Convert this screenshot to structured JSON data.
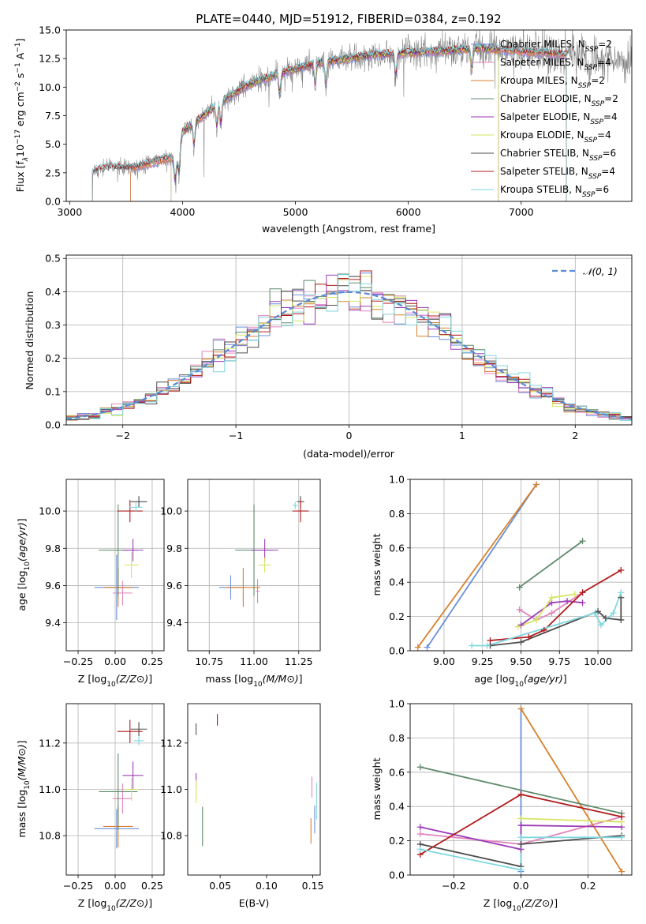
{
  "page": {
    "width": 819,
    "height": 1170
  },
  "colors": {
    "chabrier_miles": "#6a8fd9",
    "salpeter_miles": "#e283bb",
    "kroupa_miles": "#d8812d",
    "chabrier_elodie": "#5e8a6a",
    "salpeter_elodie": "#9b3bb6",
    "kroupa_elodie": "#d6e561",
    "chabrier_stelib": "#4d4d4d",
    "salpeter_stelib": "#b01c1c",
    "kroupa_stelib": "#7fd7df",
    "observed": "#808080",
    "normal": "#5b8ad6",
    "grid": "#b0b0b0"
  },
  "chart_data": [
    {
      "id": "spectrum",
      "type": "line",
      "title": "PLATE=0440, MJD=51912, FIBERID=0384, z=0.192",
      "xlabel": "wavelength [Angstrom, rest frame]",
      "ylabel": "Flux [f",
      "ylabel_parts": [
        "Flux [f",
        "λ",
        "10",
        "−17",
        " erg cm",
        "−2",
        " s",
        "−1",
        " A",
        "−1",
        "]"
      ],
      "xlim": [
        2970,
        7980
      ],
      "ylim": [
        0,
        15
      ],
      "xticks": [
        3000,
        4000,
        5000,
        6000,
        7000
      ],
      "yticks": [
        0.0,
        2.5,
        5.0,
        7.5,
        10.0,
        12.5,
        15.0
      ],
      "ytick_labels": [
        "0.0",
        "2.5",
        "5.0",
        "7.5",
        "10.0",
        "12.5",
        "15.0"
      ],
      "grid": false,
      "legend_position": "right",
      "continuum": {
        "x": [
          3200,
          3350,
          3500,
          3600,
          3800,
          3900,
          3950,
          4000,
          4200,
          4400,
          4600,
          4800,
          5000,
          5200,
          5400,
          5600,
          5800,
          6000,
          6200,
          6400,
          6600,
          6800,
          7000,
          7200,
          7400,
          7600,
          7800,
          7980
        ],
        "y": [
          2.6,
          3.0,
          2.9,
          3.0,
          3.6,
          3.8,
          3.5,
          6.1,
          7.6,
          9.1,
          10.3,
          11.0,
          11.6,
          12.1,
          12.4,
          12.7,
          12.9,
          13.0,
          13.1,
          13.2,
          13.4,
          13.3,
          13.1,
          13.0,
          12.8,
          12.6,
          12.4,
          12.3
        ]
      },
      "series": [
        {
          "name": "Chabrier MILES, N",
          "nssp": "2",
          "key": "chabrier_miles",
          "xmin": 3540,
          "xmax": 7400
        },
        {
          "name": "Salpeter MILES, N",
          "nssp": "4",
          "key": "salpeter_miles",
          "xmin": 3540,
          "xmax": 7400
        },
        {
          "name": "Kroupa MILES, N",
          "nssp": "2",
          "key": "kroupa_miles",
          "xmin": 3540,
          "xmax": 7400
        },
        {
          "name": "Chabrier ELODIE, N",
          "nssp": "2",
          "key": "chabrier_elodie",
          "xmin": 3900,
          "xmax": 6800
        },
        {
          "name": "Salpeter ELODIE, N",
          "nssp": "4",
          "key": "salpeter_elodie",
          "xmin": 3900,
          "xmax": 6800
        },
        {
          "name": "Kroupa ELODIE, N",
          "nssp": "4",
          "key": "kroupa_elodie",
          "xmin": 3900,
          "xmax": 6800
        },
        {
          "name": "Chabrier STELIB, N",
          "nssp": "6",
          "key": "chabrier_stelib",
          "xmin": 3200,
          "xmax": 7400
        },
        {
          "name": "Salpeter STELIB, N",
          "nssp": "4",
          "key": "salpeter_stelib",
          "xmin": 3200,
          "xmax": 7400
        },
        {
          "name": "Kroupa STELIB, N",
          "nssp": "6",
          "key": "kroupa_stelib",
          "xmin": 3200,
          "xmax": 7400
        }
      ],
      "legend_sub": "SSP"
    },
    {
      "id": "residuals",
      "type": "line",
      "xlabel": "(data-model)/error",
      "ylabel": "Normed distribution",
      "xlim": [
        -2.5,
        2.5
      ],
      "ylim": [
        0,
        0.51
      ],
      "xticks": [
        -2,
        -1,
        0,
        1,
        2
      ],
      "xtick_labels": [
        "−2",
        "−1",
        "0",
        "1",
        "2"
      ],
      "yticks": [
        0.0,
        0.1,
        0.2,
        0.3,
        0.4,
        0.5
      ],
      "ytick_labels": [
        "0.0",
        "0.1",
        "0.2",
        "0.3",
        "0.4",
        "0.5"
      ],
      "grid": true,
      "legend": "𝒩(0, 1)",
      "legend_position": "top-right",
      "bin_width": 0.1
    },
    {
      "id": "age-vs-Z",
      "type": "scatter",
      "xlabel": "Z [log10(Z/Z⊙)]",
      "ylabel": "age  [log10(age/yr)]",
      "xlim": [
        -0.33,
        0.33
      ],
      "ylim": [
        9.25,
        10.17
      ],
      "xticks": [
        -0.25,
        0.0,
        0.25
      ],
      "xtick_labels": [
        "−0.25",
        "0.00",
        "0.25"
      ],
      "yticks": [
        9.4,
        9.6,
        9.8,
        10.0
      ],
      "ytick_labels": [
        "9.4",
        "9.6",
        "9.8",
        "10.0"
      ],
      "grid": true,
      "points": [
        {
          "key": "chabrier_miles",
          "x": 0.01,
          "dx": 0.3,
          "y": 9.59,
          "dy": 0.35
        },
        {
          "key": "salpeter_miles",
          "x": 0.05,
          "dx": 0.13,
          "y": 9.56,
          "dy": 0.13
        },
        {
          "key": "kroupa_miles",
          "x": 0.02,
          "dx": 0.2,
          "y": 9.59,
          "dy": 0.21
        },
        {
          "key": "chabrier_elodie",
          "x": 0.02,
          "dx": 0.26,
          "y": 9.79,
          "dy": 0.49
        },
        {
          "key": "salpeter_elodie",
          "x": 0.12,
          "dx": 0.14,
          "y": 9.79,
          "dy": 0.12
        },
        {
          "key": "kroupa_elodie",
          "x": 0.11,
          "dx": 0.1,
          "y": 9.71,
          "dy": 0.14
        },
        {
          "key": "chabrier_stelib",
          "x": 0.16,
          "dx": 0.11,
          "y": 10.05,
          "dy": 0.06
        },
        {
          "key": "salpeter_stelib",
          "x": 0.1,
          "dx": 0.17,
          "y": 10.0,
          "dy": 0.12
        },
        {
          "key": "kroupa_stelib",
          "x": 0.14,
          "dx": 0.09,
          "y": 10.02,
          "dy": 0.05
        }
      ]
    },
    {
      "id": "age-vs-mass",
      "type": "scatter",
      "xlabel": "mass [log10(M/M⊙)]",
      "xlim": [
        10.63,
        11.37
      ],
      "ylim": [
        9.25,
        10.17
      ],
      "xticks": [
        10.75,
        11.0,
        11.25
      ],
      "xtick_labels": [
        "10.75",
        "11.00",
        "11.25"
      ],
      "yticks": [
        9.4,
        9.6,
        9.8,
        10.0
      ],
      "ytick_labels": [
        "9.4",
        "9.6",
        "9.8",
        "10.0"
      ],
      "grid": true,
      "points": [
        {
          "key": "chabrier_miles",
          "x": 10.87,
          "dx": 0.13,
          "y": 9.59,
          "dy": 0.13
        },
        {
          "key": "salpeter_miles",
          "x": 11.02,
          "dx": 0.02,
          "y": 9.57,
          "dy": 0.13
        },
        {
          "key": "kroupa_miles",
          "x": 10.94,
          "dx": 0.19,
          "y": 9.59,
          "dy": 0.21
        },
        {
          "key": "chabrier_elodie",
          "x": 11.0,
          "dx": 0.21,
          "y": 9.79,
          "dy": 0.49
        },
        {
          "key": "salpeter_elodie",
          "x": 11.06,
          "dx": 0.15,
          "y": 9.79,
          "dy": 0.12
        },
        {
          "key": "kroupa_elodie",
          "x": 11.06,
          "dx": 0.07,
          "y": 9.71,
          "dy": 0.08
        },
        {
          "key": "chabrier_stelib",
          "x": 11.26,
          "dx": 0.04,
          "y": 10.05,
          "dy": 0.06
        },
        {
          "key": "salpeter_stelib",
          "x": 11.26,
          "dx": 0.09,
          "y": 10.0,
          "dy": 0.12
        },
        {
          "key": "kroupa_stelib",
          "x": 11.23,
          "dx": 0.03,
          "y": 10.03,
          "dy": 0.04
        }
      ]
    },
    {
      "id": "weight-vs-age",
      "type": "line",
      "xlabel": "age  [log10(age/yr)]",
      "ylabel": "mass weight",
      "xlim": [
        8.78,
        10.22
      ],
      "ylim": [
        0,
        1
      ],
      "xticks": [
        9.0,
        9.25,
        9.5,
        9.75,
        10.0
      ],
      "xtick_labels": [
        "9.00",
        "9.25",
        "9.50",
        "9.75",
        "10.00"
      ],
      "yticks": [
        0.0,
        0.2,
        0.4,
        0.6,
        0.8,
        1.0
      ],
      "ytick_labels": [
        "0.0",
        "0.2",
        "0.4",
        "0.6",
        "0.8",
        "1.0"
      ],
      "grid": true,
      "series": [
        {
          "key": "chabrier_miles",
          "x": [
            8.89,
            9.6
          ],
          "y": [
            0.02,
            0.97
          ]
        },
        {
          "key": "salpeter_miles",
          "x": [
            9.49,
            9.6,
            9.7,
            9.9
          ],
          "y": [
            0.24,
            0.18,
            0.22,
            0.34
          ]
        },
        {
          "key": "kroupa_miles",
          "x": [
            8.83,
            9.6
          ],
          "y": [
            0.02,
            0.97
          ]
        },
        {
          "key": "chabrier_elodie",
          "x": [
            9.49,
            9.9
          ],
          "y": [
            0.37,
            0.64
          ]
        },
        {
          "key": "salpeter_elodie",
          "x": [
            9.5,
            9.7,
            9.8,
            9.9
          ],
          "y": [
            0.15,
            0.28,
            0.29,
            0.28
          ]
        },
        {
          "key": "kroupa_elodie",
          "x": [
            9.48,
            9.6,
            9.7,
            9.85
          ],
          "y": [
            0.14,
            0.18,
            0.31,
            0.33
          ]
        },
        {
          "key": "chabrier_stelib",
          "x": [
            9.3,
            9.5,
            10.0,
            10.05,
            10.15,
            10.15
          ],
          "y": [
            0.03,
            0.05,
            0.23,
            0.19,
            0.18,
            0.31
          ]
        },
        {
          "key": "salpeter_stelib",
          "x": [
            9.3,
            9.55,
            9.65,
            9.9,
            10.15
          ],
          "y": [
            0.06,
            0.08,
            0.12,
            0.34,
            0.47
          ]
        },
        {
          "key": "kroupa_stelib",
          "x": [
            9.18,
            9.28,
            9.98,
            10.02,
            10.1,
            10.15
          ],
          "y": [
            0.03,
            0.03,
            0.22,
            0.15,
            0.22,
            0.34
          ]
        }
      ]
    },
    {
      "id": "mass-vs-Z",
      "type": "scatter",
      "xlabel": "Z [log10(Z/Z⊙)]",
      "ylabel": "mass [log10(M/M⊙)]",
      "xlim": [
        -0.33,
        0.33
      ],
      "ylim": [
        10.63,
        11.37
      ],
      "xticks": [
        -0.25,
        0.0,
        0.25
      ],
      "xtick_labels": [
        "−0.25",
        "0.00",
        "0.25"
      ],
      "yticks": [
        10.8,
        11.0,
        11.2
      ],
      "ytick_labels": [
        "10.8",
        "11.0",
        "11.2"
      ],
      "grid": true,
      "points": [
        {
          "key": "chabrier_miles",
          "x": 0.01,
          "dx": 0.3,
          "y": 10.83,
          "dy": 0.17
        },
        {
          "key": "salpeter_miles",
          "x": 0.05,
          "dx": 0.13,
          "y": 10.96,
          "dy": 0.13
        },
        {
          "key": "kroupa_miles",
          "x": 0.02,
          "dx": 0.2,
          "y": 10.84,
          "dy": 0.18
        },
        {
          "key": "chabrier_elodie",
          "x": 0.02,
          "dx": 0.26,
          "y": 10.99,
          "dy": 0.33
        },
        {
          "key": "salpeter_elodie",
          "x": 0.12,
          "dx": 0.14,
          "y": 11.06,
          "dy": 0.12
        },
        {
          "key": "kroupa_elodie",
          "x": 0.11,
          "dx": 0.1,
          "y": 11.0,
          "dy": 0.1
        },
        {
          "key": "chabrier_stelib",
          "x": 0.16,
          "dx": 0.11,
          "y": 11.26,
          "dy": 0.06
        },
        {
          "key": "salpeter_stelib",
          "x": 0.1,
          "dx": 0.17,
          "y": 11.25,
          "dy": 0.1
        },
        {
          "key": "kroupa_stelib",
          "x": 0.16,
          "dx": 0.07,
          "y": 11.21,
          "dy": 0.04
        }
      ]
    },
    {
      "id": "mass-vs-ebv",
      "type": "scatter",
      "xlabel": "E(B-V)",
      "xlim": [
        0.015,
        0.158
      ],
      "ylim": [
        10.63,
        11.37
      ],
      "xticks": [
        0.05,
        0.1,
        0.15
      ],
      "xtick_labels": [
        "0.05",
        "0.10",
        "0.15"
      ],
      "yticks": [
        10.8,
        11.0,
        11.2
      ],
      "ytick_labels": [
        "10.8",
        "11.0",
        "11.2"
      ],
      "grid": false,
      "points": [
        {
          "key": "chabrier_miles",
          "x": 0.152,
          "dy": 0.12,
          "y": 10.87
        },
        {
          "key": "salpeter_miles",
          "x": 0.149,
          "dy": 0.09,
          "y": 11.01
        },
        {
          "key": "kroupa_miles",
          "x": 0.148,
          "dy": 0.11,
          "y": 10.82
        },
        {
          "key": "chabrier_elodie",
          "x": 0.031,
          "dy": 0.17,
          "y": 10.84
        },
        {
          "key": "salpeter_elodie",
          "x": 0.024,
          "dy": 0.06,
          "y": 11.04
        },
        {
          "key": "kroupa_elodie",
          "x": 0.024,
          "dy": 0.1,
          "y": 10.99
        },
        {
          "key": "chabrier_stelib",
          "x": 0.024,
          "dy": 0.05,
          "y": 11.26
        },
        {
          "key": "salpeter_stelib",
          "x": 0.047,
          "dy": 0.05,
          "y": 11.3
        },
        {
          "key": "kroupa_stelib",
          "x": 0.154,
          "dy": 0.16,
          "y": 10.95
        }
      ]
    },
    {
      "id": "weight-vs-Z",
      "type": "line",
      "xlabel": "Z [log10(Z/Z⊙)]",
      "ylabel": "mass weight",
      "xlim": [
        -0.33,
        0.33
      ],
      "ylim": [
        0,
        1
      ],
      "xticks": [
        -0.2,
        0.0,
        0.2
      ],
      "xtick_labels": [
        "−0.2",
        "0.0",
        "0.2"
      ],
      "yticks": [
        0.0,
        0.2,
        0.4,
        0.6,
        0.8,
        1.0
      ],
      "ytick_labels": [
        "0.0",
        "0.2",
        "0.4",
        "0.6",
        "0.8",
        "1.0"
      ],
      "grid": true,
      "series": [
        {
          "key": "chabrier_miles",
          "x": [
            0.0,
            0.0
          ],
          "y": [
            0.02,
            0.97
          ]
        },
        {
          "key": "salpeter_miles",
          "x": [
            -0.3,
            0.0,
            0.3
          ],
          "y": [
            0.24,
            0.18,
            0.34
          ]
        },
        {
          "key": "kroupa_miles",
          "x": [
            0.0,
            0.3
          ],
          "y": [
            0.97,
            0.02
          ]
        },
        {
          "key": "chabrier_elodie",
          "x": [
            -0.3,
            0.3
          ],
          "y": [
            0.63,
            0.36
          ]
        },
        {
          "key": "salpeter_elodie",
          "x": [
            -0.3,
            0.0,
            0.0,
            0.3
          ],
          "y": [
            0.28,
            0.15,
            0.29,
            0.28
          ]
        },
        {
          "key": "kroupa_elodie",
          "x": [
            0.0,
            0.3
          ],
          "y": [
            0.33,
            0.31
          ]
        },
        {
          "key": "chabrier_stelib",
          "x": [
            -0.3,
            0.0,
            0.0,
            0.3
          ],
          "y": [
            0.18,
            0.05,
            0.18,
            0.23
          ]
        },
        {
          "key": "salpeter_stelib",
          "x": [
            -0.3,
            0.0,
            0.3
          ],
          "y": [
            0.12,
            0.47,
            0.34
          ]
        },
        {
          "key": "kroupa_stelib",
          "x": [
            -0.3,
            0.0,
            0.0,
            0.3
          ],
          "y": [
            0.15,
            0.03,
            0.22,
            0.22
          ]
        }
      ]
    }
  ]
}
